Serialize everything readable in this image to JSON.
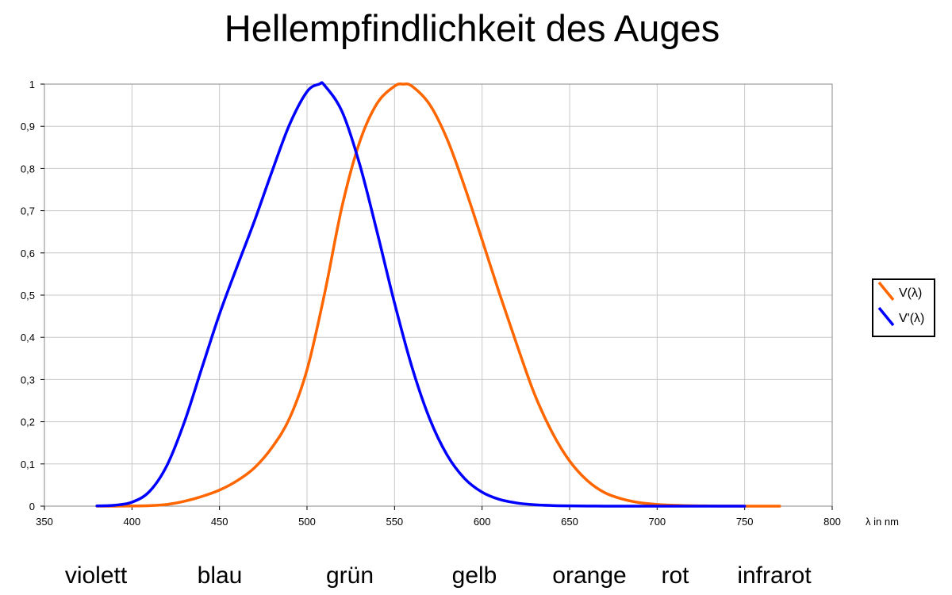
{
  "chart_data": {
    "type": "line",
    "title": "Hellempfindlichkeit des Auges",
    "xlabel": "λ in nm",
    "ylabel": "",
    "xlim": [
      350,
      800
    ],
    "ylim": [
      0,
      1
    ],
    "x_ticks": [
      "350",
      "400",
      "450",
      "500",
      "550",
      "600",
      "650",
      "700",
      "750",
      "800"
    ],
    "y_ticks": [
      "0",
      "0,1",
      "0,2",
      "0,3",
      "0,4",
      "0,5",
      "0,6",
      "0,7",
      "0,8",
      "0,9",
      "1"
    ],
    "grid": true,
    "legend_position": "right",
    "series": [
      {
        "name": "V(λ)",
        "color": "#ff6600",
        "x": [
          380,
          390,
          400,
          410,
          420,
          430,
          440,
          450,
          460,
          470,
          480,
          490,
          500,
          510,
          520,
          530,
          540,
          550,
          555,
          560,
          570,
          580,
          590,
          600,
          610,
          620,
          630,
          640,
          650,
          660,
          670,
          680,
          690,
          700,
          710,
          720,
          730,
          740,
          750,
          760,
          770
        ],
        "y": [
          0.0,
          0.0001,
          0.0004,
          0.0012,
          0.004,
          0.0116,
          0.023,
          0.038,
          0.06,
          0.091,
          0.139,
          0.208,
          0.323,
          0.503,
          0.71,
          0.862,
          0.954,
          0.995,
          1.0,
          0.995,
          0.952,
          0.87,
          0.757,
          0.631,
          0.503,
          0.381,
          0.265,
          0.175,
          0.107,
          0.061,
          0.032,
          0.017,
          0.0082,
          0.0041,
          0.0021,
          0.001,
          0.0005,
          0.0002,
          0.0001,
          0.0,
          0.0
        ]
      },
      {
        "name": "V'(λ)",
        "color": "#0000ff",
        "x": [
          380,
          390,
          400,
          410,
          420,
          430,
          440,
          450,
          460,
          470,
          480,
          490,
          500,
          507,
          510,
          520,
          530,
          540,
          550,
          560,
          570,
          580,
          590,
          600,
          610,
          620,
          630,
          640,
          650,
          660,
          670,
          680,
          690,
          700,
          720,
          750
        ],
        "y": [
          0.0006,
          0.0022,
          0.0093,
          0.0348,
          0.0966,
          0.1998,
          0.3281,
          0.455,
          0.567,
          0.676,
          0.793,
          0.904,
          0.982,
          1.0,
          0.997,
          0.935,
          0.811,
          0.65,
          0.481,
          0.3288,
          0.2076,
          0.1212,
          0.0655,
          0.0332,
          0.0159,
          0.0074,
          0.0033,
          0.0015,
          0.0007,
          0.0003,
          0.0001,
          0.0001,
          0.0,
          0.0,
          0.0,
          0.0
        ]
      }
    ],
    "color_bands": [
      "violett",
      "blau",
      "grün",
      "gelb",
      "orange",
      "rot",
      "infrarot"
    ]
  }
}
